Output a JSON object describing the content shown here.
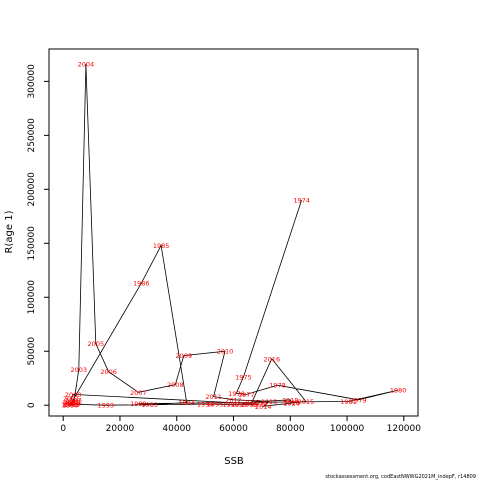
{
  "chart_data": {
    "type": "line",
    "xlabel": "SSB",
    "ylabel": "R(age 1)",
    "xlim": [
      -5000,
      125000
    ],
    "ylim": [
      -10000,
      330000
    ],
    "xticks": [
      0,
      20000,
      40000,
      60000,
      80000,
      100000,
      120000
    ],
    "xtick_labels": [
      "0",
      "20000",
      "40000",
      "60000",
      "80000",
      "100000",
      "120000"
    ],
    "yticks": [
      0,
      50000,
      100000,
      150000,
      200000,
      250000,
      300000
    ],
    "ytick_labels": [
      "0",
      "50000",
      "100000",
      "150000",
      "200000",
      "250000",
      "300000"
    ],
    "line_color": "#000000",
    "label_color": "#ff0000",
    "series": [
      {
        "points": [
          {
            "label": "1974",
            "x": 84000,
            "y": 190000
          },
          {
            "label": "1975",
            "x": 63500,
            "y": 26000
          },
          {
            "label": "1976",
            "x": 61000,
            "y": 11000
          },
          {
            "label": "1977",
            "x": 64500,
            "y": 10000
          },
          {
            "label": "1978",
            "x": 75500,
            "y": 18500
          },
          {
            "label": "1979",
            "x": 104000,
            "y": 5000
          },
          {
            "label": "1980",
            "x": 118000,
            "y": 14000
          },
          {
            "label": "1981",
            "x": 100500,
            "y": 3500
          },
          {
            "label": "1982",
            "x": 26500,
            "y": 1500
          },
          {
            "label": "1983",
            "x": 30500,
            "y": 500
          },
          {
            "label": "1984",
            "x": 43500,
            "y": 2500
          },
          {
            "label": "1985",
            "x": 34500,
            "y": 148000
          },
          {
            "label": "1986",
            "x": 27500,
            "y": 113000
          },
          {
            "label": "1987",
            "x": 3500,
            "y": 5000
          },
          {
            "label": "1988",
            "x": 3200,
            "y": 2500
          },
          {
            "label": "1989",
            "x": 3000,
            "y": 500
          },
          {
            "label": "1990",
            "x": 2500,
            "y": 100
          },
          {
            "label": "1991",
            "x": 2800,
            "y": 2000
          },
          {
            "label": "1992",
            "x": 2200,
            "y": 1000
          },
          {
            "label": "1993",
            "x": 15000,
            "y": 0
          },
          {
            "label": "1994",
            "x": 50000,
            "y": 1000
          },
          {
            "label": "1995",
            "x": 53500,
            "y": 1000
          },
          {
            "label": "1996",
            "x": 59000,
            "y": 500
          },
          {
            "label": "1997",
            "x": 62000,
            "y": 500
          },
          {
            "label": "1998",
            "x": 65500,
            "y": 500
          },
          {
            "label": "1999",
            "x": 69000,
            "y": 1000
          },
          {
            "label": "2000",
            "x": 3500,
            "y": 10000
          },
          {
            "label": "2001",
            "x": 2800,
            "y": 6000
          },
          {
            "label": "2002",
            "x": 3800,
            "y": 3500
          },
          {
            "label": "2003",
            "x": 5500,
            "y": 33000
          },
          {
            "label": "2004",
            "x": 8000,
            "y": 316000
          },
          {
            "label": "2005",
            "x": 11500,
            "y": 57000
          },
          {
            "label": "2006",
            "x": 16000,
            "y": 31000
          },
          {
            "label": "2007",
            "x": 26500,
            "y": 12000
          },
          {
            "label": "2008",
            "x": 39500,
            "y": 19000
          },
          {
            "label": "2009",
            "x": 42500,
            "y": 46000
          },
          {
            "label": "2010",
            "x": 57000,
            "y": 50000
          },
          {
            "label": "2011",
            "x": 53000,
            "y": 8000
          },
          {
            "label": "2012",
            "x": 60000,
            "y": 5000
          },
          {
            "label": "2013",
            "x": 72500,
            "y": 3500
          },
          {
            "label": "2014",
            "x": 70500,
            "y": -1000
          },
          {
            "label": "2015",
            "x": 85500,
            "y": 3500
          },
          {
            "label": "2016",
            "x": 73500,
            "y": 43000
          },
          {
            "label": "2017",
            "x": 66500,
            "y": 3000
          },
          {
            "label": "2018",
            "x": 80000,
            "y": 5000
          },
          {
            "label": "2019",
            "x": 80500,
            "y": 2500
          },
          {
            "label": "2020",
            "x": 80500,
            "y": 2000
          }
        ]
      }
    ]
  },
  "footer": {
    "text": "stockassessment.org, codEastNWWG2021M_indepF, r14809"
  }
}
